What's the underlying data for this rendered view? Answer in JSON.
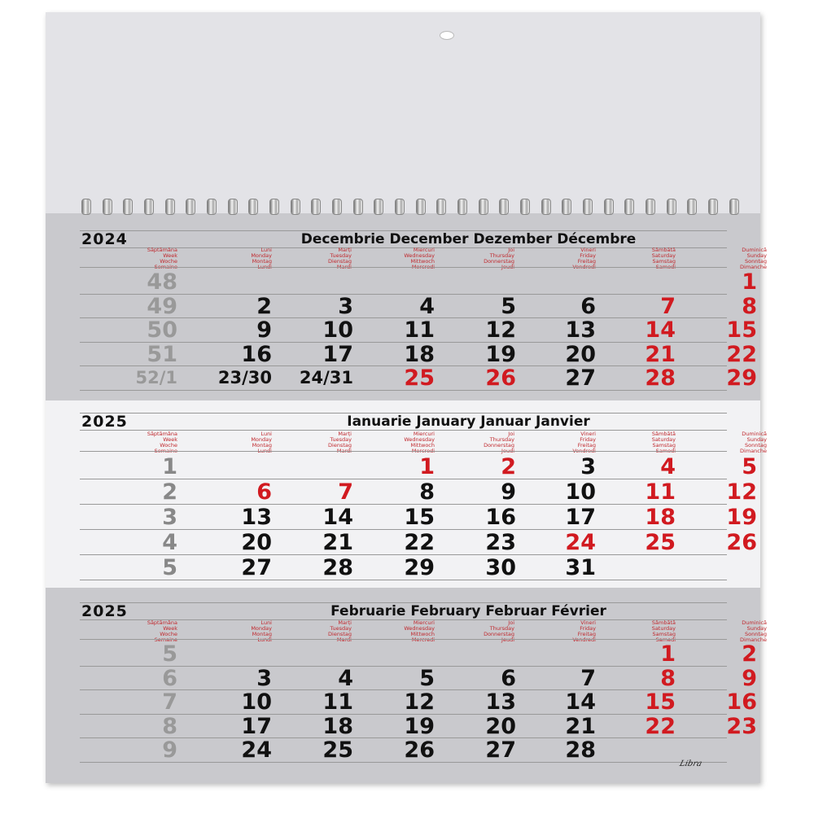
{
  "day_labels": [
    [
      "Săptămâna",
      "Week",
      "Woche",
      "Semaine"
    ],
    [
      "Luni",
      "Monday",
      "Montag",
      "Lundi"
    ],
    [
      "Marți",
      "Tuesday",
      "Dienstag",
      "Mardi"
    ],
    [
      "Miercuri",
      "Wednesday",
      "Mittwoch",
      "Mercredi"
    ],
    [
      "Joi",
      "Thursday",
      "Donnerstag",
      "Jeudi"
    ],
    [
      "Vineri",
      "Friday",
      "Freitag",
      "Vendredi"
    ],
    [
      "Sâmbătă",
      "Saturday",
      "Samstag",
      "Samedi"
    ],
    [
      "Duminică",
      "Sunday",
      "Sonntag",
      "Dimanche"
    ]
  ],
  "colors": {
    "red": "#d11a20",
    "black": "#111111",
    "week_gray": "#999999"
  },
  "months": [
    {
      "year": "2024",
      "title": "Decembrie December Dezember Décembre",
      "rows": [
        {
          "week": "48",
          "days": [
            "",
            "",
            "",
            "",
            "",
            "",
            "1"
          ],
          "red": [
            0,
            0,
            0,
            0,
            0,
            0,
            1
          ]
        },
        {
          "week": "49",
          "days": [
            "2",
            "3",
            "4",
            "5",
            "6",
            "7",
            "8"
          ],
          "red": [
            0,
            0,
            0,
            0,
            0,
            1,
            1
          ]
        },
        {
          "week": "50",
          "days": [
            "9",
            "10",
            "11",
            "12",
            "13",
            "14",
            "15"
          ],
          "red": [
            0,
            0,
            0,
            0,
            0,
            1,
            1
          ]
        },
        {
          "week": "51",
          "days": [
            "16",
            "17",
            "18",
            "19",
            "20",
            "21",
            "22"
          ],
          "red": [
            0,
            0,
            0,
            0,
            0,
            1,
            1
          ]
        },
        {
          "week": "52/1",
          "days": [
            "23/30",
            "24/31",
            "25",
            "26",
            "27",
            "28",
            "29"
          ],
          "red": [
            0,
            0,
            1,
            1,
            0,
            1,
            1
          ]
        }
      ]
    },
    {
      "year": "2025",
      "title": "Ianuarie January Januar Janvier",
      "rows": [
        {
          "week": "1",
          "days": [
            "",
            "",
            "1",
            "2",
            "3",
            "4",
            "5"
          ],
          "red": [
            0,
            0,
            1,
            1,
            0,
            1,
            1
          ]
        },
        {
          "week": "2",
          "days": [
            "6",
            "7",
            "8",
            "9",
            "10",
            "11",
            "12"
          ],
          "red": [
            1,
            1,
            0,
            0,
            0,
            1,
            1
          ]
        },
        {
          "week": "3",
          "days": [
            "13",
            "14",
            "15",
            "16",
            "17",
            "18",
            "19"
          ],
          "red": [
            0,
            0,
            0,
            0,
            0,
            1,
            1
          ]
        },
        {
          "week": "4",
          "days": [
            "20",
            "21",
            "22",
            "23",
            "24",
            "25",
            "26"
          ],
          "red": [
            0,
            0,
            0,
            0,
            1,
            1,
            1
          ]
        },
        {
          "week": "5",
          "days": [
            "27",
            "28",
            "29",
            "30",
            "31",
            "",
            ""
          ],
          "red": [
            0,
            0,
            0,
            0,
            0,
            0,
            0
          ]
        }
      ]
    },
    {
      "year": "2025",
      "title": "Februarie February Februar Février",
      "rows": [
        {
          "week": "5",
          "days": [
            "",
            "",
            "",
            "",
            "",
            "1",
            "2"
          ],
          "red": [
            0,
            0,
            0,
            0,
            0,
            1,
            1
          ]
        },
        {
          "week": "6",
          "days": [
            "3",
            "4",
            "5",
            "6",
            "7",
            "8",
            "9"
          ],
          "red": [
            0,
            0,
            0,
            0,
            0,
            1,
            1
          ]
        },
        {
          "week": "7",
          "days": [
            "10",
            "11",
            "12",
            "13",
            "14",
            "15",
            "16"
          ],
          "red": [
            0,
            0,
            0,
            0,
            0,
            1,
            1
          ]
        },
        {
          "week": "8",
          "days": [
            "17",
            "18",
            "19",
            "20",
            "21",
            "22",
            "23"
          ],
          "red": [
            0,
            0,
            0,
            0,
            0,
            1,
            1
          ]
        },
        {
          "week": "9",
          "days": [
            "24",
            "25",
            "26",
            "27",
            "28",
            "",
            ""
          ],
          "red": [
            0,
            0,
            0,
            0,
            0,
            0,
            0
          ]
        }
      ]
    }
  ],
  "brand": "Libra"
}
